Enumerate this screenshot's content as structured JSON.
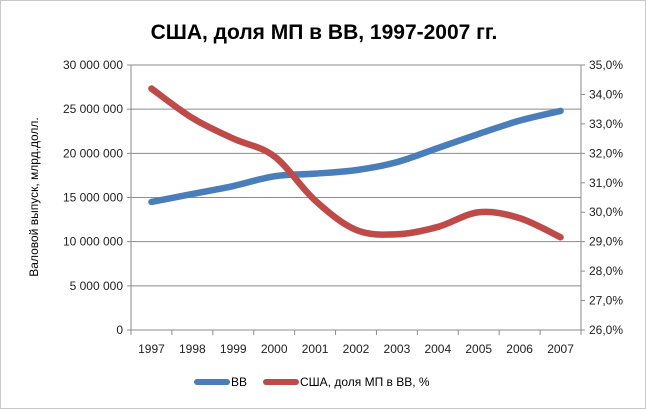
{
  "chart_data": {
    "type": "line",
    "title": "США, доля МП в ВВ, 1997-2007 гг.",
    "xlabel": "",
    "ylabel": "Валовой выпуск,  млрд.долл.",
    "y2label": "",
    "categories": [
      "1997",
      "1998",
      "1999",
      "2000",
      "2001",
      "2002",
      "2003",
      "2004",
      "2005",
      "2006",
      "2007"
    ],
    "y_ticks": [
      "0",
      "5 000 000",
      "10 000 000",
      "15 000 000",
      "20 000 000",
      "25 000 000",
      "30 000 000"
    ],
    "y2_ticks": [
      "26,0%",
      "27,0%",
      "28,0%",
      "29,0%",
      "30,0%",
      "31,0%",
      "32,0%",
      "33,0%",
      "34,0%",
      "35,0%"
    ],
    "ylim": [
      0,
      30000000
    ],
    "y2lim": [
      26.0,
      35.0
    ],
    "grid": "horizontal",
    "legend_position": "bottom",
    "series": [
      {
        "name": "ВВ",
        "axis": "left",
        "color": "#4a7ebb",
        "values": [
          14500000,
          15400000,
          16300000,
          17400000,
          17700000,
          18100000,
          19000000,
          20600000,
          22200000,
          23700000,
          24800000
        ]
      },
      {
        "name": "США, доля МП в ВВ, %",
        "axis": "right",
        "color": "#be4b48",
        "values": [
          34.2,
          33.2,
          32.5,
          31.9,
          30.4,
          29.4,
          29.25,
          29.5,
          30.0,
          29.8,
          29.15
        ]
      }
    ]
  }
}
